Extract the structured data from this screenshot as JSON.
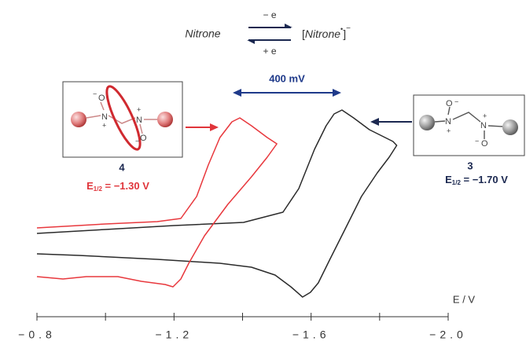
{
  "chart_data": {
    "type": "line",
    "x_label": "E / V",
    "xlim": [
      -0.8,
      -2.0
    ],
    "xticks": [
      {
        "value": -0.8,
        "label": "−0.8"
      },
      {
        "value": -1.2,
        "label": "−1.2"
      },
      {
        "value": -1.6,
        "label": "−1.6"
      },
      {
        "value": -2.0,
        "label": "−2.0"
      }
    ],
    "xminor_ticks": [
      -1.0,
      -1.4,
      -1.8
    ],
    "ylim": [
      0,
      30
    ],
    "series": [
      {
        "color": "#2b2b2b",
        "x": [
          -0.8,
          -1.0,
          -1.2,
          -1.403,
          -1.518,
          -1.564,
          -1.61,
          -1.644,
          -1.667,
          -1.69,
          -1.724,
          -1.77,
          -1.816,
          -1.839,
          -1.85,
          -1.828,
          -1.793,
          -1.747,
          -1.701,
          -1.655,
          -1.621,
          -1.598,
          -1.575,
          -1.541,
          -1.495,
          -1.426,
          -1.334,
          -1.151,
          -0.922,
          -0.8
        ],
        "values": [
          10.3,
          10.8,
          11.3,
          11.7,
          13.0,
          16.0,
          21.0,
          24.0,
          25.5,
          26.0,
          25.0,
          23.5,
          22.5,
          22.0,
          21.5,
          20.0,
          18.0,
          15.0,
          11.0,
          7.0,
          4.0,
          2.8,
          2.2,
          3.5,
          5.0,
          6.0,
          6.5,
          7.0,
          7.5,
          7.7
        ]
      },
      {
        "color": "#e8383d",
        "x": [
          -0.8,
          -1.0,
          -1.151,
          -1.22,
          -1.266,
          -1.3,
          -1.334,
          -1.369,
          -1.392,
          -1.426,
          -1.472,
          -1.5,
          -1.472,
          -1.426,
          -1.357,
          -1.289,
          -1.243,
          -1.22,
          -1.197,
          -1.174,
          -1.105,
          -1.036,
          -0.944,
          -0.876,
          -0.8
        ],
        "values": [
          11.0,
          11.5,
          11.8,
          12.2,
          15.0,
          19.0,
          22.5,
          24.5,
          25.0,
          24.0,
          22.5,
          21.7,
          20.0,
          17.5,
          14.0,
          10.0,
          6.5,
          4.5,
          3.5,
          3.8,
          4.2,
          4.8,
          4.8,
          4.5,
          4.8
        ]
      }
    ],
    "annotations": {
      "scheme": {
        "reactant": "Nitrone",
        "forward": "− e",
        "backward": "+ e",
        "product": [
          "[",
          "Nitrone",
          "•",
          "]",
          "−"
        ]
      },
      "shift": "400 mV",
      "compound_4": {
        "label": "4",
        "potential": [
          "E",
          "1/2",
          " = −1.30 V"
        ],
        "atoms": [
          "O",
          "N",
          "N",
          "O"
        ],
        "charges": [
          "−",
          "+",
          "+",
          "−"
        ]
      },
      "compound_3": {
        "label": "3",
        "potential": [
          "E",
          "1/2",
          " = −1.70 V"
        ],
        "atoms": [
          "O",
          "N",
          "N",
          "O"
        ],
        "charges": [
          "−",
          "+",
          "+",
          "−"
        ]
      }
    }
  }
}
